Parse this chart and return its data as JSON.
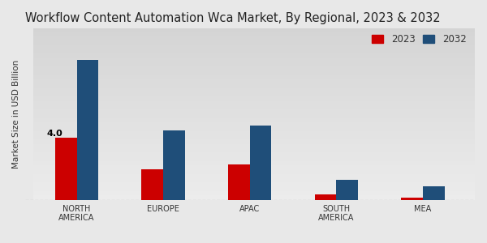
{
  "title": "Workflow Content Automation Wca Market, By Regional, 2023 & 2032",
  "ylabel": "Market Size in USD Billion",
  "categories": [
    "NORTH\nAMERICA",
    "EUROPE",
    "APAC",
    "SOUTH\nAMERICA",
    "MEA"
  ],
  "values_2023": [
    4.0,
    2.0,
    2.3,
    0.4,
    0.15
  ],
  "values_2032": [
    9.0,
    4.5,
    4.8,
    1.3,
    0.9
  ],
  "color_2023": "#cc0000",
  "color_2032": "#1f4e79",
  "annotation_label": "4.0",
  "background_color_light": "#f0f0f0",
  "background_color_dark": "#c8c8c8",
  "bar_width": 0.25,
  "title_fontsize": 10.5,
  "legend_labels": [
    "2023",
    "2032"
  ],
  "ylim": [
    0,
    11
  ],
  "red_bar_color": "#cc0000",
  "red_bar_height": 0.03
}
